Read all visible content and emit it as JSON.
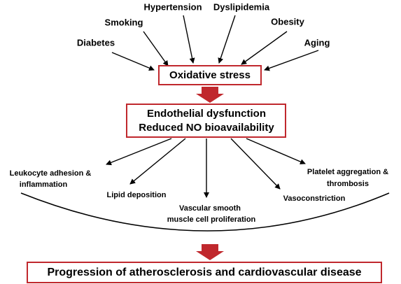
{
  "risk_factors": [
    "Diabetes",
    "Smoking",
    "Hypertension",
    "Dyslipidemia",
    "Obesity",
    "Aging"
  ],
  "central": "Oxidative stress",
  "dysfunction": [
    "Endothelial dysfunction",
    "Reduced NO bioavailability"
  ],
  "outcomes": [
    {
      "lines": [
        "Leukocyte adhesion &",
        "inflammation"
      ]
    },
    {
      "lines": [
        "Lipid deposition"
      ]
    },
    {
      "lines": [
        "Vascular smooth",
        "muscle cell proliferation"
      ]
    },
    {
      "lines": [
        "Vasoconstriction"
      ]
    },
    {
      "lines": [
        "Platelet aggregation &",
        "thrombosis"
      ]
    }
  ],
  "result": "Progression of atherosclerosis and cardiovascular disease"
}
